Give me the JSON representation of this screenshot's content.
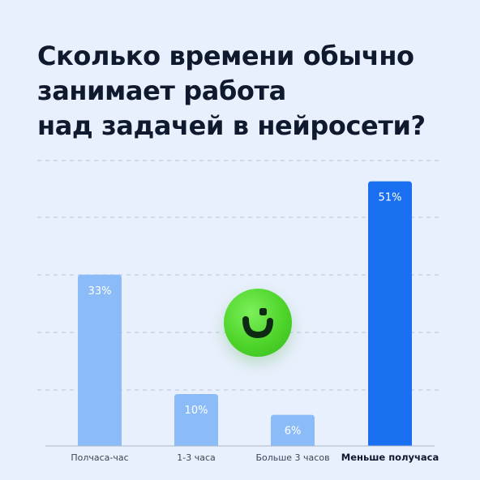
{
  "title": "Сколько времени обычно\nзанимает работа\nнад задачей в нейросети?",
  "colors": {
    "background": "#e8f0fd",
    "bar": "#8cbcf8",
    "bar_highlight": "#1a6ff0",
    "grid": "#b7c4d8",
    "text": "#0f1a2e",
    "logo": "#4ed42a"
  },
  "logo": {
    "icon": "smile-icon"
  },
  "chart_data": {
    "type": "bar",
    "title": "Сколько времени обычно занимает работа над задачей в нейросети?",
    "categories": [
      "Полчаса-час",
      "1-3 часа",
      "Больше 3 часов",
      "Меньше получаса"
    ],
    "values": [
      33,
      10,
      6,
      51
    ],
    "data_labels": [
      "33%",
      "10%",
      "6%",
      "51%"
    ],
    "highlight_index": 3,
    "ylim": [
      0,
      55
    ],
    "grid": true,
    "xlabel": "",
    "ylabel": ""
  }
}
